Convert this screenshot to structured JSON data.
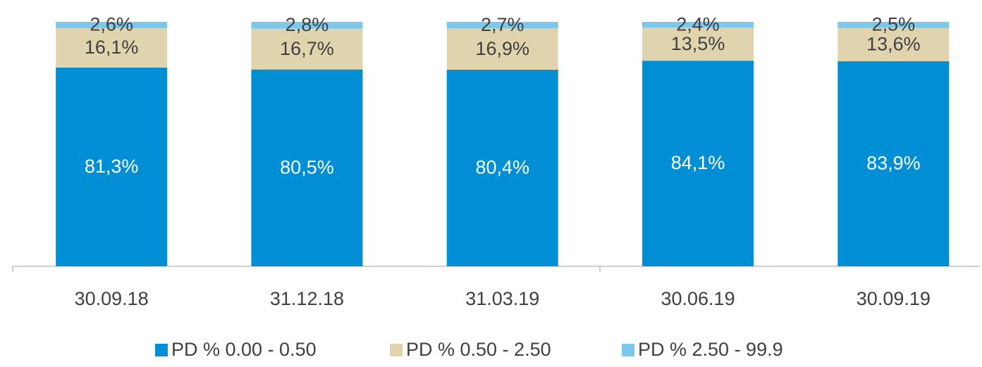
{
  "chart_data": {
    "type": "stacked_bar",
    "categories": [
      "30.09.18",
      "31.12.18",
      "31.03.19",
      "30.06.19",
      "30.09.19"
    ],
    "series": [
      {
        "name": "PD % 0.00 - 0.50",
        "color": "#008fd5",
        "values": [
          81.3,
          80.5,
          80.4,
          84.1,
          83.9
        ],
        "value_labels": [
          "81,3%",
          "80,5%",
          "80,4%",
          "84,1%",
          "83,9%"
        ]
      },
      {
        "name": "PD % 0.50 - 2.50",
        "color": "#e0d4ae",
        "values": [
          16.1,
          16.7,
          16.9,
          13.5,
          13.6
        ],
        "value_labels": [
          "16,1%",
          "16,7%",
          "16,9%",
          "13,5%",
          "13,6%"
        ]
      },
      {
        "name": "PD % 2.50 - 99.9",
        "color": "#7cc7ec",
        "values": [
          2.6,
          2.8,
          2.7,
          2.4,
          2.5
        ],
        "value_labels": [
          "2,6%",
          "2,8%",
          "2,7%",
          "2,4%",
          "2,5%"
        ]
      }
    ],
    "legend": "bottom"
  }
}
